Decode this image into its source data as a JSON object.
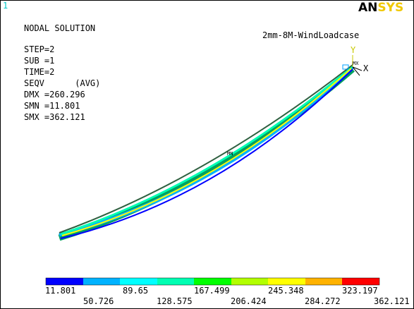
{
  "window_number": "1",
  "logo": {
    "dark": "AN",
    "light": "SYS"
  },
  "header": {
    "lines": [
      "NODAL SOLUTION",
      "STEP=2",
      "SUB =1",
      "TIME=2",
      "SEQV      (AVG)",
      "DMX =260.296",
      "SMN =11.801",
      "SMX =362.121"
    ]
  },
  "subtitle": "2mm-8M-WindLoadcase",
  "triad": {
    "y": "Y",
    "x": "X",
    "mx": "MX"
  },
  "min_marker": "MN",
  "legend": {
    "labels": [
      "11.801",
      "50.726",
      "89.65",
      "128.575",
      "167.499",
      "206.424",
      "245.348",
      "284.272",
      "323.197",
      "362.121"
    ]
  }
}
